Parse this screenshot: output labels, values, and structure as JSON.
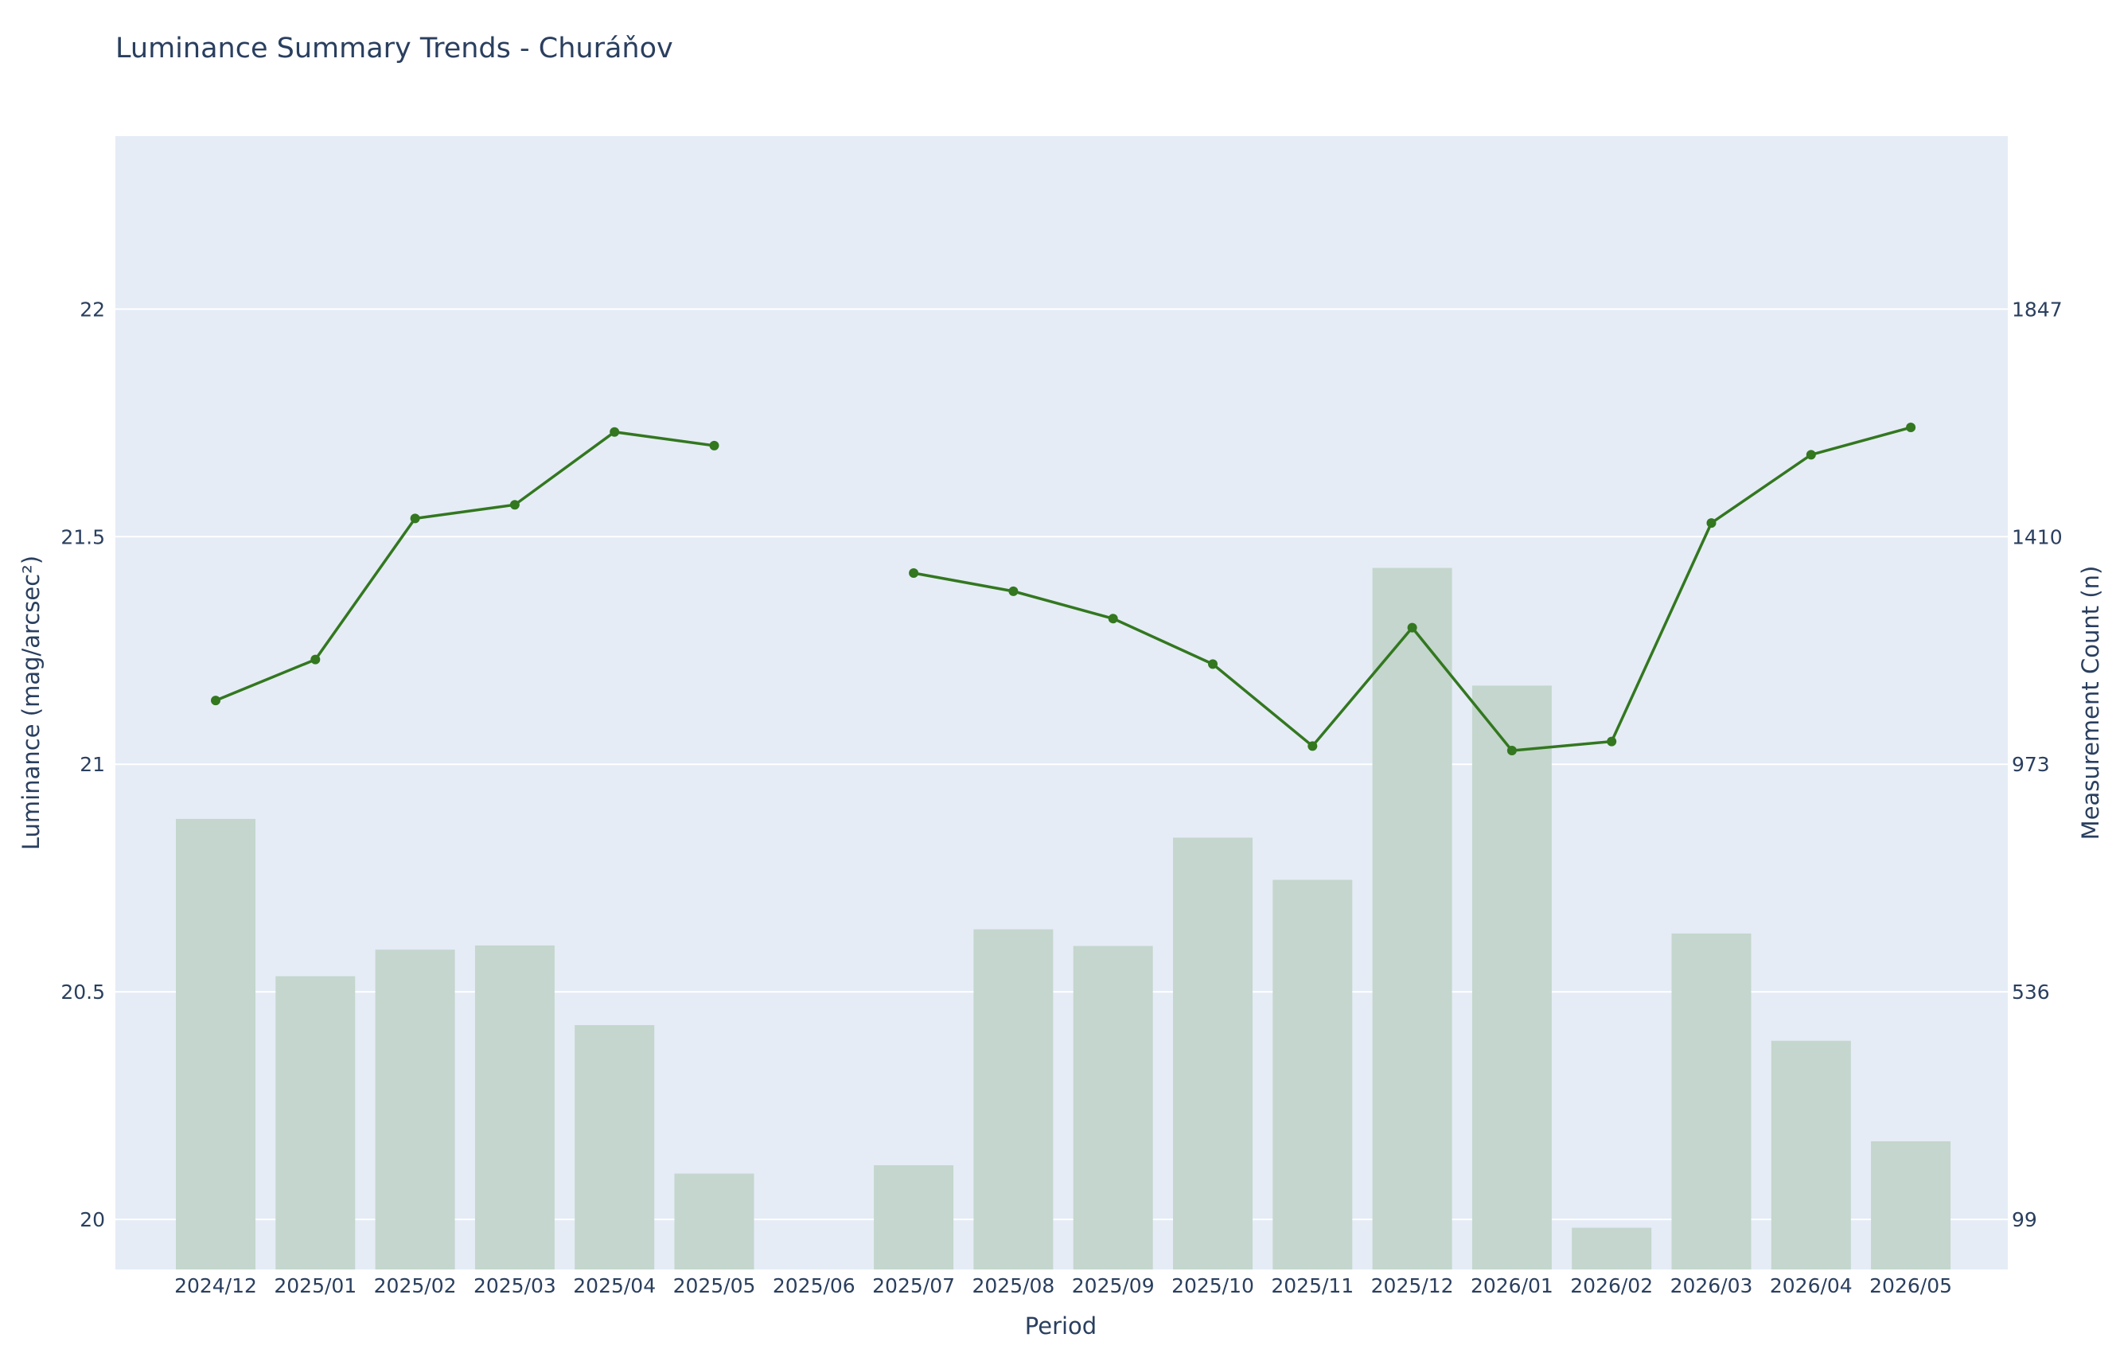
{
  "chart_data": {
    "type": "bar+line",
    "title": "Luminance Summary Trends - Churáňov",
    "xlabel": "Period",
    "ylabel": "Luminance (mag/arcsec²)",
    "y2label": "Measurement Count (n)",
    "categories": [
      "2024/12",
      "2025/01",
      "2025/02",
      "2025/03",
      "2025/04",
      "2025/05",
      "2025/06",
      "2025/07",
      "2025/08",
      "2025/09",
      "2025/10",
      "2025/11",
      "2025/12",
      "2026/01",
      "2026/02",
      "2026/03",
      "2026/04",
      "2026/05"
    ],
    "ylim": [
      19.89,
      22.38
    ],
    "y_ticks": [
      20,
      20.5,
      21,
      21.5,
      22
    ],
    "y2_ticks": [
      99,
      536,
      973,
      1410,
      1847
    ],
    "grid": true,
    "legend": "none",
    "series": [
      {
        "kind": "line",
        "axis": "y",
        "color": "#33771f",
        "values": [
          21.14,
          21.23,
          21.54,
          21.57,
          21.73,
          21.7,
          null,
          21.42,
          21.38,
          21.32,
          21.22,
          21.04,
          21.3,
          21.03,
          21.05,
          21.53,
          21.68,
          21.74
        ]
      },
      {
        "kind": "bar",
        "axis": "y2",
        "color": "#c4d6cd",
        "values": [
          868,
          566,
          617,
          625,
          472,
          187,
          0,
          203,
          656,
          624,
          832,
          751,
          1350,
          1124,
          83,
          648,
          442,
          249
        ]
      }
    ]
  },
  "colors": {
    "plot_bg": "#e5ecf6",
    "grid": "#ffffff",
    "text": "#2a3f5f",
    "line": "#33771f",
    "bar": "#c4d6cd"
  }
}
